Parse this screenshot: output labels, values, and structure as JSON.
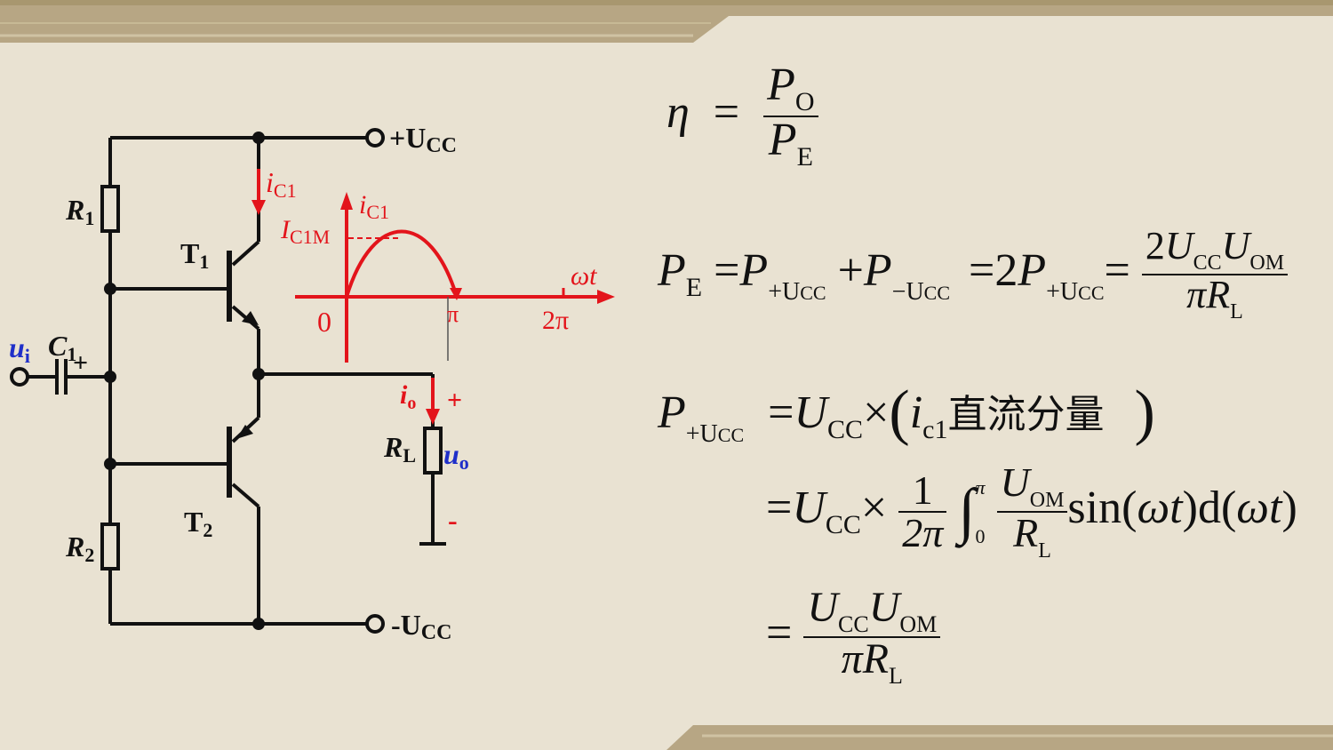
{
  "colors": {
    "background": "#e9e2d2",
    "wire": "#111111",
    "signal": "#e3141b",
    "input": "#1f2fc9",
    "band": "#b7a684"
  },
  "circuit": {
    "vcc_pos_label": "+U",
    "vcc_pos_sub": "CC",
    "vcc_neg_label": "-U",
    "vcc_neg_sub": "CC",
    "r1_label": "R",
    "r1_sub": "1",
    "r2_label": "R",
    "r2_sub": "2",
    "t1_label": "T",
    "t1_sub": "1",
    "t2_label": "T",
    "t2_sub": "2",
    "c1_label": "C",
    "c1_sub": "1",
    "c1_plus": "+",
    "ui_label": "u",
    "ui_sub": "i",
    "ic1_label": "i",
    "ic1_sub": "C1",
    "io_label": "i",
    "io_sub": "o",
    "rl_label": "R",
    "rl_sub": "L",
    "uo_label": "u",
    "uo_sub": "o",
    "plus_sign": "+",
    "minus_sign": "-"
  },
  "waveform": {
    "y_label": "i",
    "y_sub": "C1",
    "peak_label": "I",
    "peak_sub": "C1M",
    "x_label": "ωt",
    "origin": "0",
    "tick_pi": "π",
    "tick_2pi": "2π"
  },
  "equations": {
    "eta": "η",
    "eq": "=",
    "P": "P",
    "O": "O",
    "E": "E",
    "plus_ucc": "+U",
    "minus_ucc": "−U",
    "CC": "CC",
    "OM": "OM",
    "U": "U",
    "R": "R",
    "L": "L",
    "plus": "+",
    "times": "×",
    "two": "2",
    "one": "1",
    "pi": "π",
    "two_pi": "2π",
    "i": "i",
    "c1": "c1",
    "dc_component": "直流分量",
    "lparen": "(",
    "rparen": ")",
    "zero": "0",
    "sin": "sin",
    "d": "d",
    "omega_t": "ωt"
  }
}
